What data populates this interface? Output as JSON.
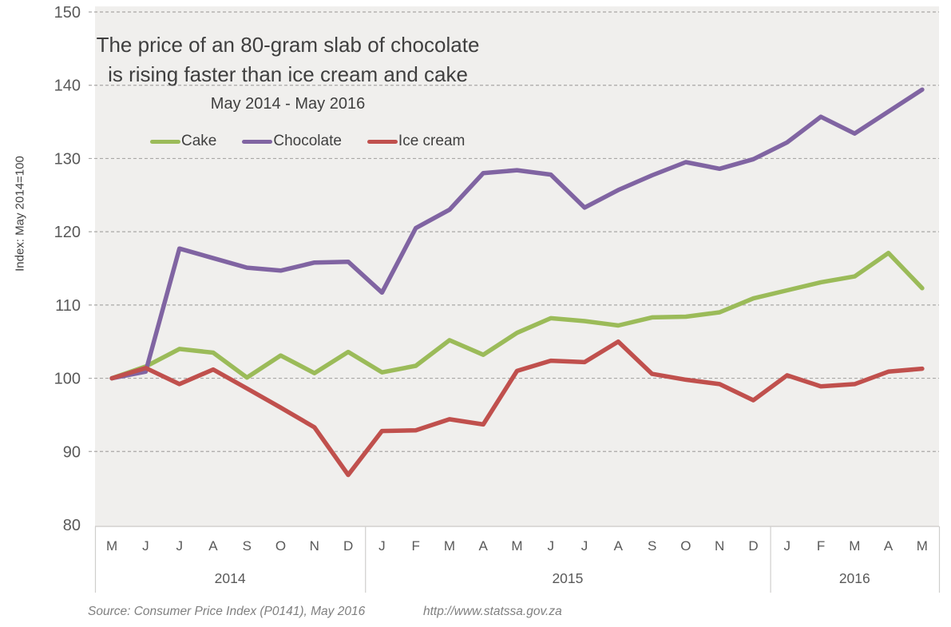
{
  "chart_data": {
    "type": "line",
    "title_line1": "The price of an 80-gram slab of chocolate",
    "title_line2": "is rising faster than ice cream and cake",
    "subtitle": "May 2014 - May 2016",
    "ylabel": "Index: May 2014=100",
    "xlabel": "",
    "x_months": [
      "M",
      "J",
      "J",
      "A",
      "S",
      "O",
      "N",
      "D",
      "J",
      "F",
      "M",
      "A",
      "M",
      "J",
      "J",
      "A",
      "S",
      "O",
      "N",
      "D",
      "J",
      "F",
      "M",
      "A",
      "M"
    ],
    "year_groups": [
      {
        "label": "2014",
        "start": 0,
        "count": 8
      },
      {
        "label": "2015",
        "start": 8,
        "count": 12
      },
      {
        "label": "2016",
        "start": 20,
        "count": 5
      }
    ],
    "yticks": [
      150,
      140,
      130,
      120,
      110,
      100,
      90,
      80
    ],
    "ylim": [
      80,
      150
    ],
    "grid": "horizontal-dashed",
    "legend_position": "top-left",
    "series": [
      {
        "name": "Cake",
        "color": "#9BBB59",
        "values": [
          100.0,
          101.6,
          104.0,
          103.5,
          100.1,
          103.1,
          100.7,
          103.6,
          100.8,
          101.7,
          105.2,
          103.2,
          106.2,
          108.2,
          107.8,
          107.2,
          108.3,
          108.4,
          109.0,
          110.9,
          112.0,
          113.1,
          113.9,
          117.1,
          112.3
        ]
      },
      {
        "name": "Chocolate",
        "color": "#8064A2",
        "values": [
          100.0,
          100.9,
          117.7,
          116.4,
          115.1,
          114.7,
          115.8,
          115.9,
          111.7,
          120.5,
          123.0,
          128.0,
          128.4,
          127.8,
          123.3,
          125.7,
          127.7,
          129.5,
          128.6,
          129.9,
          132.2,
          135.7,
          133.4,
          136.4,
          139.4
        ]
      },
      {
        "name": "Ice cream",
        "color": "#C0504D",
        "values": [
          100.0,
          101.4,
          99.2,
          101.2,
          98.6,
          96.0,
          93.3,
          86.8,
          92.8,
          92.9,
          94.4,
          93.7,
          101.0,
          102.4,
          102.2,
          105.0,
          100.6,
          99.8,
          99.2,
          97.0,
          100.4,
          98.9,
          99.2,
          100.9,
          101.3
        ]
      }
    ],
    "colors": {
      "plot_bg": "#F0EFED",
      "gridline": "#A9A8A6",
      "axis_line": "#CFCECC",
      "axis_text": "#595959",
      "title_text": "#3F3F3F",
      "source_text": "#7F7F7F"
    }
  },
  "source": {
    "text": "Source: Consumer Price Index (P0141), May 2016",
    "url": "http://www.statssa.gov.za"
  }
}
